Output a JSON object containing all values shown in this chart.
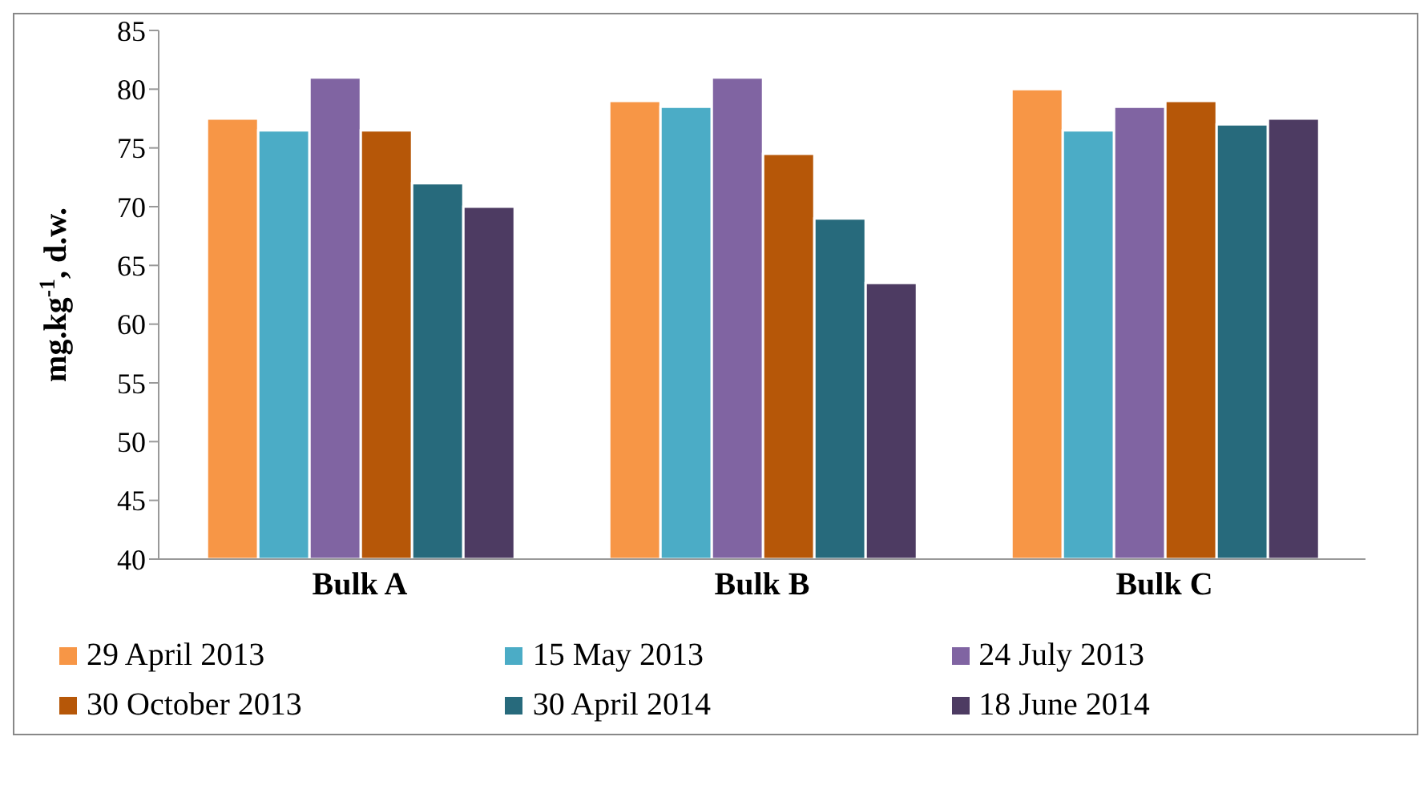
{
  "chart_data": {
    "type": "bar",
    "ylabel": "mg.kg$^{-1}$, d.w.",
    "categories": [
      "Bulk A",
      "Bulk B",
      "Bulk C"
    ],
    "series": [
      {
        "name": "29 April 2013",
        "color": "#f79646",
        "values": [
          77.5,
          79,
          80
        ]
      },
      {
        "name": "15 May 2013",
        "color": "#4bacc6",
        "values": [
          76.5,
          78.5,
          76.5
        ]
      },
      {
        "name": "24 July 2013",
        "color": "#8064a2",
        "values": [
          81,
          81,
          78.5
        ]
      },
      {
        "name": "30 October 2013",
        "color": "#b65708",
        "values": [
          76.5,
          74.5,
          79
        ]
      },
      {
        "name": "30 April 2014",
        "color": "#276a7c",
        "values": [
          72,
          69,
          77
        ]
      },
      {
        "name": "18 June 2014",
        "color": "#4d3b62",
        "values": [
          70,
          63.5,
          77.5
        ]
      }
    ],
    "ylim": [
      40,
      85
    ],
    "yticks": [
      40,
      45,
      50,
      55,
      60,
      65,
      70,
      75,
      80,
      85
    ],
    "grid": false,
    "legend": "bottom"
  }
}
